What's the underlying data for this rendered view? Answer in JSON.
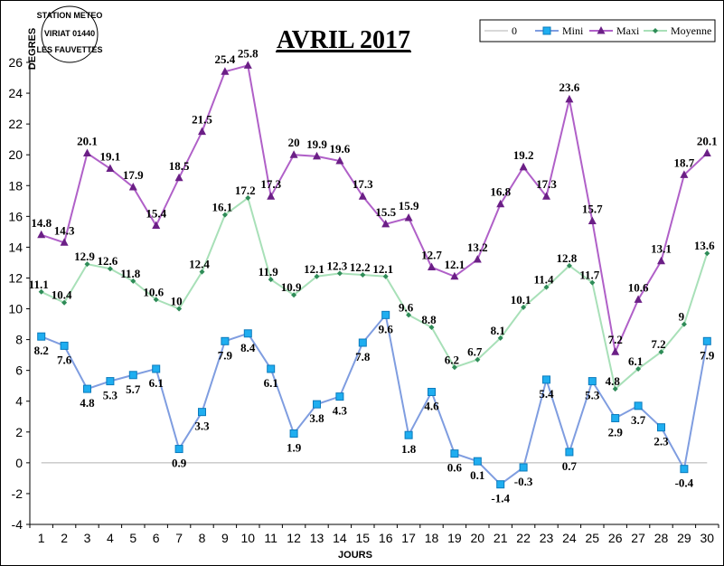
{
  "chart_data": {
    "type": "line",
    "title": "AVRIL 2017",
    "xlabel": "JOURS",
    "ylabel": "DEGRES",
    "ylim": [
      -4,
      26
    ],
    "yticks": [
      -4,
      -2,
      0,
      2,
      4,
      6,
      8,
      10,
      12,
      14,
      16,
      18,
      20,
      22,
      24,
      26
    ],
    "categories": [
      "1",
      "2",
      "3",
      "4",
      "5",
      "6",
      "7",
      "8",
      "9",
      "10",
      "11",
      "12",
      "13",
      "14",
      "15",
      "16",
      "17",
      "18",
      "19",
      "20",
      "21",
      "22",
      "23",
      "24",
      "25",
      "26",
      "27",
      "28",
      "29",
      "30"
    ],
    "legend_position": "top-right",
    "series": [
      {
        "name": "0",
        "color": "#b0b0b0",
        "marker": "none",
        "values": [
          0,
          0,
          0,
          0,
          0,
          0,
          0,
          0,
          0,
          0,
          0,
          0,
          0,
          0,
          0,
          0,
          0,
          0,
          0,
          0,
          0,
          0,
          0,
          0,
          0,
          0,
          0,
          0,
          0,
          0
        ]
      },
      {
        "name": "Mini",
        "color": "#7f9de0",
        "marker": "square",
        "marker_color": "#1faef0",
        "values": [
          8.2,
          7.6,
          4.8,
          5.3,
          5.7,
          6.1,
          0.9,
          3.3,
          7.9,
          8.4,
          6.1,
          1.9,
          3.8,
          4.3,
          7.8,
          9.6,
          1.8,
          4.6,
          0.6,
          0.1,
          -1.4,
          -0.3,
          5.4,
          0.7,
          5.3,
          2.9,
          3.7,
          2.3,
          -0.4,
          7.9
        ]
      },
      {
        "name": "Maxi",
        "color": "#b060c8",
        "marker": "triangle",
        "marker_color": "#6b1f86",
        "values": [
          14.8,
          14.3,
          20.1,
          19.1,
          17.9,
          15.4,
          18.5,
          21.5,
          25.4,
          25.8,
          17.3,
          20,
          19.9,
          19.6,
          17.3,
          15.5,
          15.9,
          12.7,
          12.1,
          13.2,
          16.8,
          19.2,
          17.3,
          23.6,
          15.7,
          7.2,
          10.6,
          13.1,
          18.7,
          20.1
        ]
      },
      {
        "name": "Moyenne",
        "color": "#a8e0b8",
        "marker": "diamond",
        "marker_color": "#2e8b57",
        "values": [
          11.1,
          10.4,
          12.9,
          12.6,
          11.8,
          10.6,
          10,
          12.4,
          16.1,
          17.2,
          11.9,
          10.9,
          12.1,
          12.3,
          12.2,
          12.1,
          9.6,
          8.8,
          6.2,
          6.7,
          8.1,
          10.1,
          11.4,
          12.8,
          11.7,
          4.8,
          6.1,
          7.2,
          9,
          13.6
        ]
      }
    ]
  },
  "stamp": {
    "line1": "STATION METEO",
    "line2": "VIRIAT 01440",
    "line3": "LES FAUVETTES"
  }
}
